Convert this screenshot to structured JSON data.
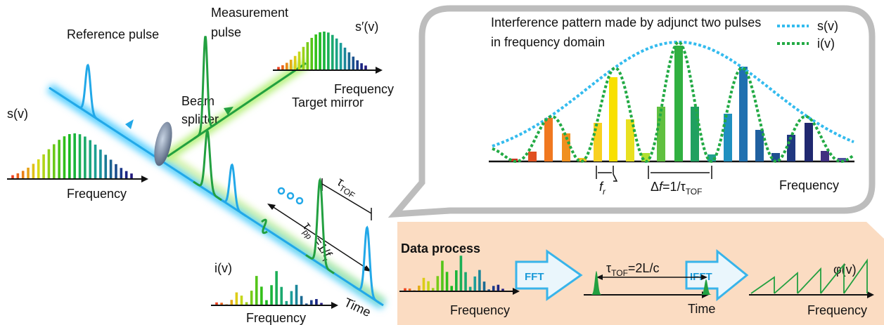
{
  "reference_pulse": "Reference pulse",
  "measurement_pulse": [
    "Measurement",
    "pulse"
  ],
  "s_prime": "s′(v)",
  "s_prime_axis": "Frequency",
  "beam_splitter": [
    "Beam",
    "splitter"
  ],
  "target_mirror": "Target mirror",
  "s": "s(v)",
  "s_axis": "Frequency",
  "tau_tof": {
    "symbol": "τ",
    "subscript": "TOF"
  },
  "tau_pp": {
    "symbol": "τ",
    "subscript": "pp",
    "rest": " =1/",
    "f": "f",
    "f_sub": "r"
  },
  "i": "i(v)",
  "i_axis": "Frequency",
  "time_axis": "Time",
  "callout": {
    "title": [
      "Interference pattern made by adjunct two pulses",
      "in frequency domain"
    ],
    "legend": [
      "s(v)",
      "i(v)"
    ],
    "fr": {
      "f": "f",
      "sub": "r"
    },
    "delta_f": {
      "delta": "Δ",
      "f": "f",
      "rest": "=1/τ",
      "sub": "TOF"
    },
    "axis": "Frequency"
  },
  "data_process": {
    "title": "Data process",
    "fft": "FFT",
    "tau": {
      "symbol": "τ",
      "subscript": "TOF",
      "rest": "=2L/c"
    },
    "time": "Time",
    "ifft": "IFFT",
    "phi": "φ(v)",
    "axis1": "Frequency",
    "axis3": "Frequency"
  }
}
